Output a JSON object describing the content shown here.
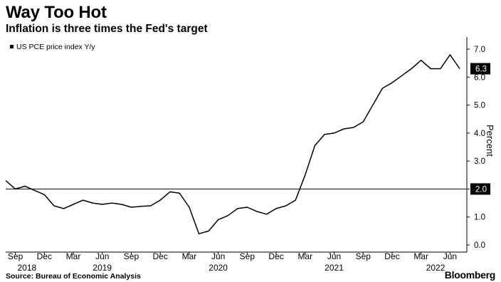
{
  "header": {
    "title": "Way Too Hot",
    "subtitle": "Inflation is three times the Fed's target"
  },
  "footer": {
    "source": "Source: Bureau of Economic Analysis",
    "brand": "Bloomberg"
  },
  "chart_data": {
    "type": "line",
    "legend": {
      "label": "US PCE price index Y/y",
      "placement": "top-left"
    },
    "ylabel": "Percent",
    "ylim": [
      0,
      7.2
    ],
    "yticks": [
      "0.0",
      "1.0",
      "2.0",
      "3.0",
      "4.0",
      "5.0",
      "6.0",
      "7.0"
    ],
    "xticks": [
      "Sep",
      "Dec",
      "Mar",
      "Jun",
      "Sep",
      "Dec",
      "Mar",
      "Jun",
      "Sep",
      "Dec",
      "Mar",
      "Jun",
      "Sep",
      "Dec",
      "Mar",
      "Jun"
    ],
    "xyears": [
      "2018",
      "2019",
      "2020",
      "2021",
      "2022"
    ],
    "reference_line": {
      "value": 2.0,
      "label": "2.0"
    },
    "last_value_label": "6.3",
    "series": [
      {
        "name": "US PCE price index Y/y",
        "x": [
          "2018-08",
          "2018-09",
          "2018-10",
          "2018-11",
          "2018-12",
          "2019-01",
          "2019-02",
          "2019-03",
          "2019-04",
          "2019-05",
          "2019-06",
          "2019-07",
          "2019-08",
          "2019-09",
          "2019-10",
          "2019-11",
          "2019-12",
          "2020-01",
          "2020-02",
          "2020-03",
          "2020-04",
          "2020-05",
          "2020-06",
          "2020-07",
          "2020-08",
          "2020-09",
          "2020-10",
          "2020-11",
          "2020-12",
          "2021-01",
          "2021-02",
          "2021-03",
          "2021-04",
          "2021-05",
          "2021-06",
          "2021-07",
          "2021-08",
          "2021-09",
          "2021-10",
          "2021-11",
          "2021-12",
          "2022-01",
          "2022-02",
          "2022-03",
          "2022-04",
          "2022-05",
          "2022-06",
          "2022-07"
        ],
        "values": [
          2.3,
          2.0,
          2.1,
          1.95,
          1.8,
          1.4,
          1.3,
          1.45,
          1.6,
          1.5,
          1.45,
          1.5,
          1.45,
          1.35,
          1.38,
          1.4,
          1.6,
          1.9,
          1.85,
          1.35,
          0.4,
          0.5,
          0.9,
          1.05,
          1.3,
          1.35,
          1.2,
          1.1,
          1.3,
          1.4,
          1.6,
          2.5,
          3.55,
          3.95,
          4.0,
          4.15,
          4.2,
          4.4,
          5.0,
          5.6,
          5.8,
          6.05,
          6.3,
          6.6,
          6.3,
          6.3,
          6.8,
          6.3
        ]
      }
    ]
  }
}
